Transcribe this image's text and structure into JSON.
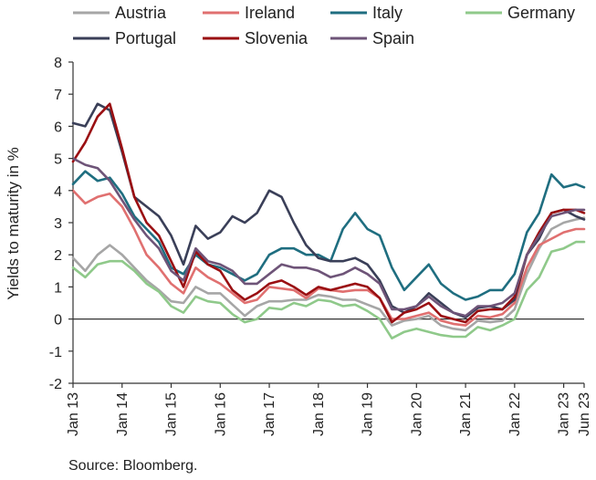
{
  "source": "Source: Bloomberg.",
  "chart_data": {
    "type": "line",
    "title": "",
    "xlabel": "",
    "ylabel": "Yields to maturity in %",
    "ylim": [
      -2,
      8
    ],
    "yticks": [
      "8",
      "7",
      "6",
      "5",
      "4",
      "3",
      "2",
      "1",
      "0",
      "-1",
      "-2"
    ],
    "xlim": [
      "2013-01",
      "2023-06"
    ],
    "xticks": [
      {
        "label": "Jan 13",
        "date": "2013-01"
      },
      {
        "label": "Jan 14",
        "date": "2014-01"
      },
      {
        "label": "Jan 15",
        "date": "2015-01"
      },
      {
        "label": "Jan 16",
        "date": "2016-01"
      },
      {
        "label": "Jan 17",
        "date": "2017-01"
      },
      {
        "label": "Jan 18",
        "date": "2018-01"
      },
      {
        "label": "Jan 19",
        "date": "2019-01"
      },
      {
        "label": "Jan 20",
        "date": "2020-01"
      },
      {
        "label": "Jan 21",
        "date": "2021-01"
      },
      {
        "label": "Jan 22",
        "date": "2022-01"
      },
      {
        "label": "Jan 23",
        "date": "2023-01"
      },
      {
        "label": "Jun 23",
        "date": "2023-06"
      }
    ],
    "grid": false,
    "zero_line": true,
    "legend": "top",
    "series": [
      {
        "name": "Austria",
        "color": "#a6a6a6",
        "x": [
          "2013-01",
          "2013-04",
          "2013-07",
          "2013-10",
          "2014-01",
          "2014-04",
          "2014-07",
          "2014-10",
          "2015-01",
          "2015-04",
          "2015-07",
          "2015-10",
          "2016-01",
          "2016-04",
          "2016-07",
          "2016-10",
          "2017-01",
          "2017-04",
          "2017-07",
          "2017-10",
          "2018-01",
          "2018-04",
          "2018-07",
          "2018-10",
          "2019-01",
          "2019-04",
          "2019-07",
          "2019-10",
          "2020-01",
          "2020-04",
          "2020-07",
          "2020-10",
          "2021-01",
          "2021-04",
          "2021-07",
          "2021-10",
          "2022-01",
          "2022-04",
          "2022-07",
          "2022-10",
          "2023-01",
          "2023-04",
          "2023-06"
        ],
        "y": [
          1.9,
          1.5,
          2.0,
          2.3,
          2.0,
          1.6,
          1.2,
          0.9,
          0.55,
          0.5,
          1.0,
          0.8,
          0.8,
          0.45,
          0.1,
          0.4,
          0.55,
          0.55,
          0.6,
          0.6,
          0.75,
          0.7,
          0.6,
          0.6,
          0.45,
          0.3,
          -0.2,
          -0.05,
          0.0,
          0.1,
          -0.2,
          -0.3,
          -0.35,
          -0.05,
          -0.1,
          -0.05,
          0.3,
          1.4,
          2.2,
          2.8,
          3.0,
          3.1,
          3.15
        ]
      },
      {
        "name": "Ireland",
        "color": "#e07070",
        "x": [
          "2013-01",
          "2013-04",
          "2013-07",
          "2013-10",
          "2014-01",
          "2014-04",
          "2014-07",
          "2014-10",
          "2015-01",
          "2015-04",
          "2015-07",
          "2015-10",
          "2016-01",
          "2016-04",
          "2016-07",
          "2016-10",
          "2017-01",
          "2017-04",
          "2017-07",
          "2017-10",
          "2018-01",
          "2018-04",
          "2018-07",
          "2018-10",
          "2019-01",
          "2019-04",
          "2019-07",
          "2019-10",
          "2020-01",
          "2020-04",
          "2020-07",
          "2020-10",
          "2021-01",
          "2021-04",
          "2021-07",
          "2021-10",
          "2022-01",
          "2022-04",
          "2022-07",
          "2022-10",
          "2023-01",
          "2023-04",
          "2023-06"
        ],
        "y": [
          4.0,
          3.6,
          3.8,
          3.9,
          3.5,
          2.8,
          2.0,
          1.6,
          1.1,
          0.8,
          1.6,
          1.3,
          1.1,
          0.8,
          0.5,
          0.6,
          1.0,
          0.95,
          0.9,
          0.65,
          0.95,
          0.9,
          0.85,
          0.9,
          0.9,
          0.65,
          0.0,
          0.0,
          0.1,
          0.2,
          -0.05,
          -0.15,
          -0.2,
          0.1,
          0.05,
          0.15,
          0.5,
          1.6,
          2.3,
          2.5,
          2.7,
          2.8,
          2.8
        ]
      },
      {
        "name": "Italy",
        "color": "#1f6e80",
        "x": [
          "2013-01",
          "2013-04",
          "2013-07",
          "2013-10",
          "2014-01",
          "2014-04",
          "2014-07",
          "2014-10",
          "2015-01",
          "2015-04",
          "2015-07",
          "2015-10",
          "2016-01",
          "2016-04",
          "2016-07",
          "2016-10",
          "2017-01",
          "2017-04",
          "2017-07",
          "2017-10",
          "2018-01",
          "2018-04",
          "2018-07",
          "2018-10",
          "2019-01",
          "2019-04",
          "2019-07",
          "2019-10",
          "2020-01",
          "2020-04",
          "2020-07",
          "2020-10",
          "2021-01",
          "2021-04",
          "2021-07",
          "2021-10",
          "2022-01",
          "2022-04",
          "2022-07",
          "2022-10",
          "2023-01",
          "2023-04",
          "2023-06"
        ],
        "y": [
          4.2,
          4.6,
          4.3,
          4.4,
          3.9,
          3.2,
          2.8,
          2.4,
          1.6,
          1.4,
          2.0,
          1.7,
          1.6,
          1.4,
          1.2,
          1.4,
          2.0,
          2.2,
          2.2,
          2.0,
          2.0,
          1.8,
          2.8,
          3.3,
          2.8,
          2.6,
          1.6,
          0.9,
          1.3,
          1.7,
          1.1,
          0.8,
          0.6,
          0.7,
          0.9,
          0.9,
          1.4,
          2.7,
          3.3,
          4.5,
          4.1,
          4.2,
          4.1
        ]
      },
      {
        "name": "Germany",
        "color": "#8fc98a",
        "x": [
          "2013-01",
          "2013-04",
          "2013-07",
          "2013-10",
          "2014-01",
          "2014-04",
          "2014-07",
          "2014-10",
          "2015-01",
          "2015-04",
          "2015-07",
          "2015-10",
          "2016-01",
          "2016-04",
          "2016-07",
          "2016-10",
          "2017-01",
          "2017-04",
          "2017-07",
          "2017-10",
          "2018-01",
          "2018-04",
          "2018-07",
          "2018-10",
          "2019-01",
          "2019-04",
          "2019-07",
          "2019-10",
          "2020-01",
          "2020-04",
          "2020-07",
          "2020-10",
          "2021-01",
          "2021-04",
          "2021-07",
          "2021-10",
          "2022-01",
          "2022-04",
          "2022-07",
          "2022-10",
          "2023-01",
          "2023-04",
          "2023-06"
        ],
        "y": [
          1.6,
          1.3,
          1.7,
          1.8,
          1.8,
          1.5,
          1.1,
          0.85,
          0.4,
          0.2,
          0.7,
          0.55,
          0.5,
          0.15,
          -0.1,
          0.0,
          0.35,
          0.3,
          0.5,
          0.4,
          0.6,
          0.55,
          0.4,
          0.45,
          0.25,
          0.0,
          -0.6,
          -0.4,
          -0.3,
          -0.4,
          -0.5,
          -0.55,
          -0.55,
          -0.25,
          -0.35,
          -0.2,
          0.0,
          0.9,
          1.3,
          2.1,
          2.2,
          2.4,
          2.4
        ]
      },
      {
        "name": "Portugal",
        "color": "#3a3f58",
        "x": [
          "2013-01",
          "2013-04",
          "2013-07",
          "2013-10",
          "2014-01",
          "2014-04",
          "2014-07",
          "2014-10",
          "2015-01",
          "2015-04",
          "2015-07",
          "2015-10",
          "2016-01",
          "2016-04",
          "2016-07",
          "2016-10",
          "2017-01",
          "2017-04",
          "2017-07",
          "2017-10",
          "2018-01",
          "2018-04",
          "2018-07",
          "2018-10",
          "2019-01",
          "2019-04",
          "2019-07",
          "2019-10",
          "2020-01",
          "2020-04",
          "2020-07",
          "2020-10",
          "2021-01",
          "2021-04",
          "2021-07",
          "2021-10",
          "2022-01",
          "2022-04",
          "2022-07",
          "2022-10",
          "2023-01",
          "2023-04",
          "2023-06"
        ],
        "y": [
          6.1,
          6.0,
          6.7,
          6.5,
          5.2,
          3.8,
          3.5,
          3.2,
          2.6,
          1.7,
          2.9,
          2.5,
          2.7,
          3.2,
          3.0,
          3.3,
          4.0,
          3.8,
          3.0,
          2.3,
          1.9,
          1.8,
          1.8,
          1.9,
          1.7,
          1.2,
          0.4,
          0.2,
          0.4,
          0.8,
          0.5,
          0.2,
          0.05,
          0.35,
          0.4,
          0.3,
          0.6,
          2.0,
          2.5,
          3.3,
          3.4,
          3.2,
          3.1
        ]
      },
      {
        "name": "Slovenia",
        "color": "#9a0f12",
        "x": [
          "2013-01",
          "2013-04",
          "2013-07",
          "2013-10",
          "2014-01",
          "2014-04",
          "2014-07",
          "2014-10",
          "2015-01",
          "2015-04",
          "2015-07",
          "2015-10",
          "2016-01",
          "2016-04",
          "2016-07",
          "2016-10",
          "2017-01",
          "2017-04",
          "2017-07",
          "2017-10",
          "2018-01",
          "2018-04",
          "2018-07",
          "2018-10",
          "2019-01",
          "2019-04",
          "2019-07",
          "2019-10",
          "2020-01",
          "2020-04",
          "2020-07",
          "2020-10",
          "2021-01",
          "2021-04",
          "2021-07",
          "2021-10",
          "2022-01",
          "2022-04",
          "2022-07",
          "2022-10",
          "2023-01",
          "2023-04",
          "2023-06"
        ],
        "y": [
          4.9,
          5.5,
          6.3,
          6.7,
          5.3,
          3.8,
          3.0,
          2.6,
          1.8,
          1.0,
          2.1,
          1.7,
          1.5,
          0.9,
          0.6,
          0.8,
          1.1,
          1.2,
          1.0,
          0.75,
          1.0,
          0.9,
          1.0,
          1.1,
          1.0,
          0.65,
          -0.1,
          0.2,
          0.3,
          0.5,
          0.1,
          0.0,
          -0.1,
          0.25,
          0.3,
          0.3,
          0.7,
          2.0,
          2.7,
          3.3,
          3.4,
          3.4,
          3.3
        ]
      },
      {
        "name": "Spain",
        "color": "#6e5478",
        "x": [
          "2013-01",
          "2013-04",
          "2013-07",
          "2013-10",
          "2014-01",
          "2014-04",
          "2014-07",
          "2014-10",
          "2015-01",
          "2015-04",
          "2015-07",
          "2015-10",
          "2016-01",
          "2016-04",
          "2016-07",
          "2016-10",
          "2017-01",
          "2017-04",
          "2017-07",
          "2017-10",
          "2018-01",
          "2018-04",
          "2018-07",
          "2018-10",
          "2019-01",
          "2019-04",
          "2019-07",
          "2019-10",
          "2020-01",
          "2020-04",
          "2020-07",
          "2020-10",
          "2021-01",
          "2021-04",
          "2021-07",
          "2021-10",
          "2022-01",
          "2022-04",
          "2022-07",
          "2022-10",
          "2023-01",
          "2023-04",
          "2023-06"
        ],
        "y": [
          5.0,
          4.8,
          4.7,
          4.3,
          3.7,
          3.1,
          2.6,
          2.2,
          1.5,
          1.2,
          2.2,
          1.8,
          1.7,
          1.5,
          1.1,
          1.1,
          1.4,
          1.7,
          1.6,
          1.6,
          1.5,
          1.3,
          1.4,
          1.6,
          1.4,
          1.1,
          0.3,
          0.3,
          0.4,
          0.7,
          0.4,
          0.2,
          0.1,
          0.4,
          0.4,
          0.5,
          0.8,
          2.0,
          2.6,
          3.2,
          3.3,
          3.4,
          3.4
        ]
      }
    ]
  }
}
